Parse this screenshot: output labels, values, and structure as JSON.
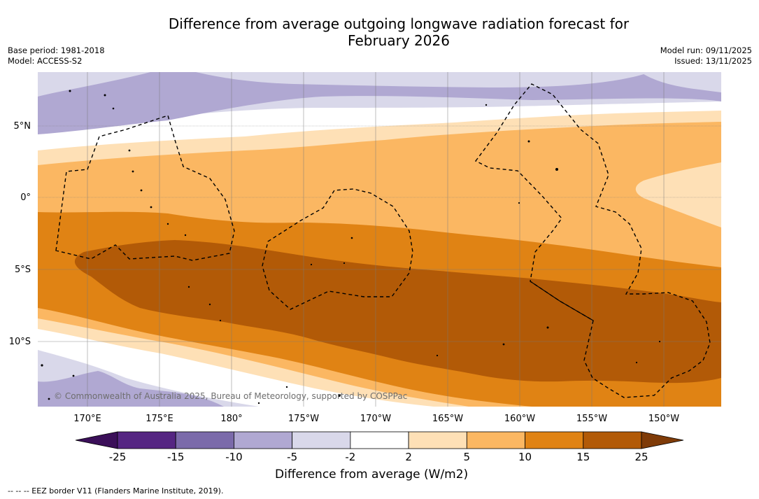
{
  "title_line1": "Difference from average outgoing longwave radiation forecast for",
  "title_line2": "February 2026",
  "base_period": "Base period: 1981-2018",
  "model": "Model: ACCESS-S2",
  "model_run": "Model run: 09/11/2025",
  "issued": "Issued: 13/11/2025",
  "lat_labels": [
    "5°N",
    "0°",
    "5°S",
    "10°S"
  ],
  "lon_labels": [
    "170°E",
    "175°E",
    "180°",
    "175°W",
    "170°W",
    "165°W",
    "160°W",
    "155°W",
    "150°W"
  ],
  "copyright": "© Commonwealth of Australia 2025, Bureau of Meteorology, supported by COSPPac",
  "colorbar": {
    "ticks": [
      "-25",
      "-15",
      "-10",
      "-5",
      "-2",
      "2",
      "5",
      "10",
      "15",
      "25"
    ],
    "colors": [
      "#3b0f59",
      "#552582",
      "#7b6aaa",
      "#b0a8d2",
      "#d9d8ea",
      "#ffffff",
      "#fee0b6",
      "#fbb762",
      "#e08314",
      "#b25a07",
      "#7f3b08"
    ],
    "label": "Difference from average (W/m2)"
  },
  "footnote": "-- -- -- EEZ border V11 (Flanders Marine Institute, 2019)."
}
